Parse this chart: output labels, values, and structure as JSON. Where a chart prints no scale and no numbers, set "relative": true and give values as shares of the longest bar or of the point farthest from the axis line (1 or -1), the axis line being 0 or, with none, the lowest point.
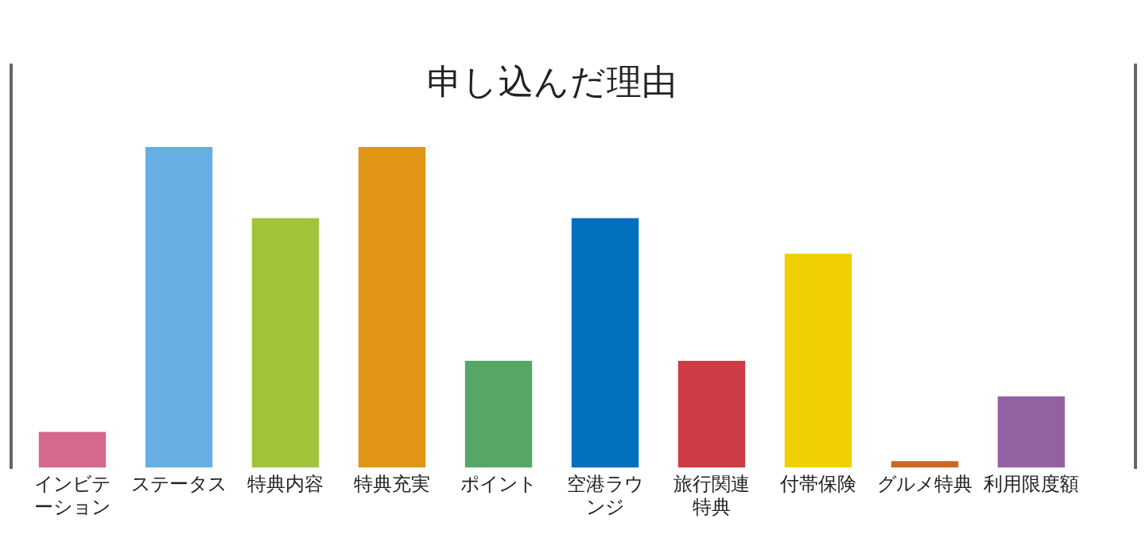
{
  "chart_data": {
    "type": "bar",
    "title": "申し込んだ理由",
    "relative": true,
    "categories": [
      "インビテーション",
      "ステータス",
      "特典内容",
      "特典充実",
      "ポイント",
      "空港ラウンジ",
      "旅行関連特典",
      "付帯保険",
      "グルメ特典",
      "利用限度額"
    ],
    "values": [
      0.111,
      1,
      0.778,
      1,
      0.333,
      0.778,
      0.333,
      0.667,
      0.02,
      0.222
    ],
    "colors": [
      "#d4698c",
      "#66aee4",
      "#a1c43a",
      "#e09614",
      "#56a766",
      "#0070bf",
      "#cd3c45",
      "#f0cf00",
      "#d0651e",
      "#9461a3"
    ],
    "grid": false,
    "legend": false
  }
}
